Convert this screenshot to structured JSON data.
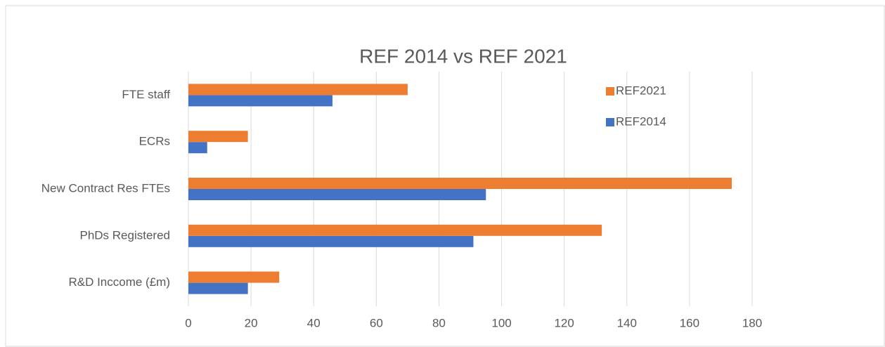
{
  "chart_data": {
    "type": "hbar",
    "title": "REF 2014 vs REF 2021",
    "categories": [
      "FTE staff",
      "ECRs",
      "New Contract Res FTEs",
      "PhDs Registered",
      "R&D Inccome (£m)"
    ],
    "series": [
      {
        "name": "REF2014",
        "color": "#4472c4",
        "values": [
          46,
          6,
          95,
          91,
          19
        ]
      },
      {
        "name": "REF2021",
        "color": "#ed7d31",
        "values": [
          70,
          19,
          173.5,
          132,
          29
        ]
      }
    ],
    "xlim": [
      0,
      180
    ],
    "xticks": [
      0,
      20,
      40,
      60,
      80,
      100,
      120,
      140,
      160,
      180
    ],
    "grid": true,
    "legend": "top-right"
  }
}
